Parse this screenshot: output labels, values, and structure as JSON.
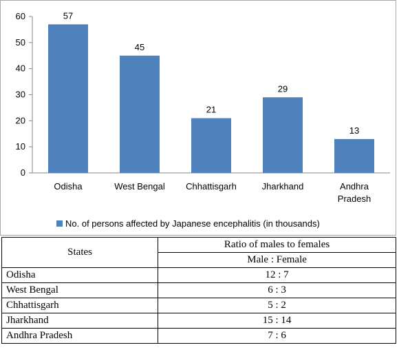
{
  "chart_data": {
    "type": "bar",
    "categories": [
      "Odisha",
      "West Bengal",
      "Chhattisgarh",
      "Jharkhand",
      "Andhra Pradesh"
    ],
    "category_lines": [
      [
        "Odisha"
      ],
      [
        "West Bengal"
      ],
      [
        "Chhattisgarh"
      ],
      [
        "Jharkhand"
      ],
      [
        "Andhra",
        "Pradesh"
      ]
    ],
    "series": [
      {
        "name": "No. of persons affected by Japanese encephalitis (in thousands)",
        "values": [
          57,
          45,
          21,
          29,
          13
        ]
      }
    ],
    "data_labels": [
      "57",
      "45",
      "21",
      "29",
      "13"
    ],
    "ylim": [
      0,
      60
    ],
    "yticks": [
      0,
      10,
      20,
      30,
      40,
      50,
      60
    ],
    "grid": false,
    "legend_position": "bottom",
    "bar_color": "#4f81bd",
    "title": "",
    "xlabel": "",
    "ylabel": ""
  },
  "table": {
    "header_states": "States",
    "header_ratio": "Ratio of males to females",
    "header_sub": "Male : Female",
    "rows": [
      {
        "state": "Odisha",
        "ratio": "12 : 7"
      },
      {
        "state": "West Bengal",
        "ratio": "6 : 3"
      },
      {
        "state": "Chhattisgarh",
        "ratio": "5 : 2"
      },
      {
        "state": "Jharkhand",
        "ratio": "15 : 14"
      },
      {
        "state": "Andhra Pradesh",
        "ratio": "7 : 6"
      }
    ]
  }
}
